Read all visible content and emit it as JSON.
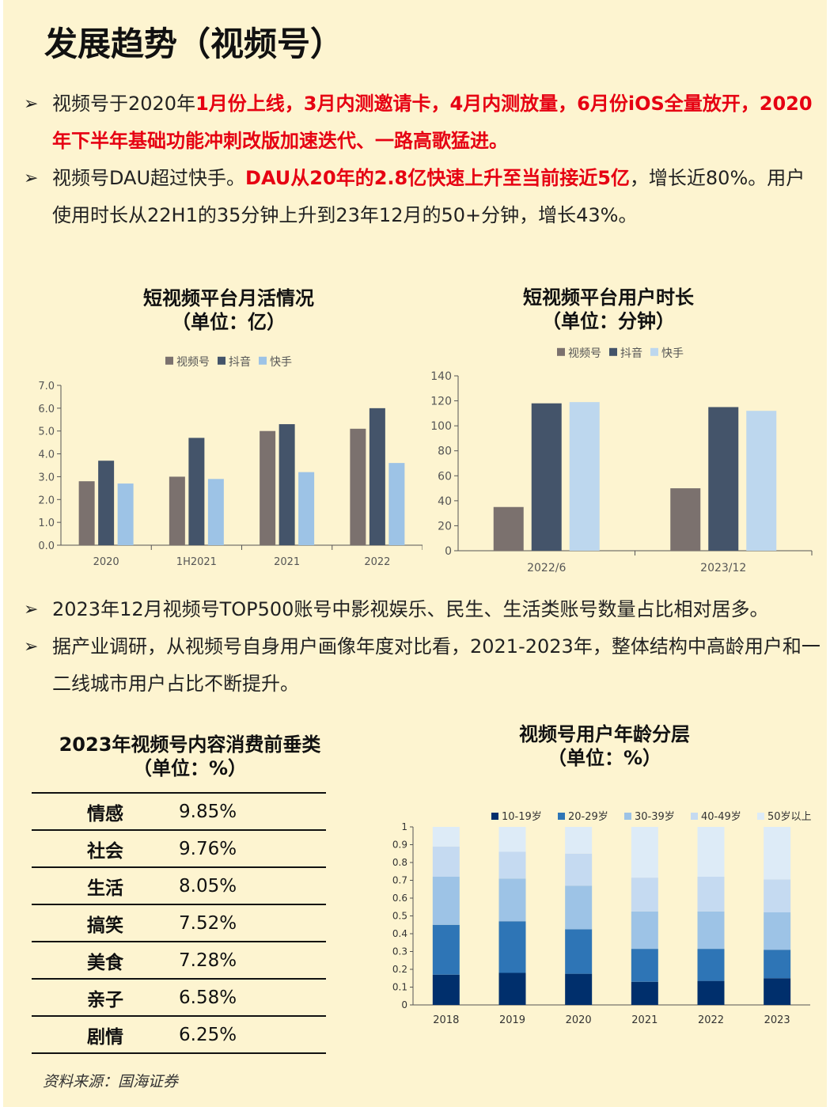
{
  "title": "发展趋势（视频号）",
  "bullets_top": [
    [
      {
        "t": "视频号于2020年",
        "red": false
      },
      {
        "t": "1月份上线，3月内测邀请卡，4月内测放量，6月份iOS全量放开，2020年下半年基础功能冲刺改版加速迭代、一路高歌猛进。",
        "red": true
      }
    ],
    [
      {
        "t": "视频号DAU超过快手。",
        "red": false
      },
      {
        "t": "DAU从20年的2.8亿快速上升至当前接近5亿",
        "red": true
      },
      {
        "t": "，增长近80%。用户使用时长从22H1的35分钟上升到23年12月的50+分钟，增长43%。",
        "red": false
      }
    ]
  ],
  "bullets_mid": [
    [
      {
        "t": "2023年12月视频号TOP500账号中影视娱乐、民生、生活类账号数量占比相对居多。",
        "red": false
      }
    ],
    [
      {
        "t": "据产业调研，从视频号自身用户画像年度对比看，2021-2023年，整体结构中高龄用户和一二线城市用户占比不断提升。",
        "red": false
      }
    ]
  ],
  "chart1_title_line1": "短视频平台月活情况",
  "chart1_title_line2": "（单位：亿）",
  "chart2_title_line1": "短视频平台用户时长",
  "chart2_title_line2": "（单位：分钟）",
  "table_title_line1": "2023年视频号内容消费前垂类",
  "table_title_line2": "（单位：%）",
  "chart3_title_line1": "视频号用户年龄分层",
  "chart3_title_line2": "（单位：%）",
  "source": "资料来源：国海证券",
  "table_rows": [
    {
      "name": "情感",
      "value": "9.85%"
    },
    {
      "name": "社会",
      "value": "9.76%"
    },
    {
      "name": "生活",
      "value": "8.05%"
    },
    {
      "name": "搞笑",
      "value": "7.52%"
    },
    {
      "name": "美食",
      "value": "7.28%"
    },
    {
      "name": "亲子",
      "value": "6.58%"
    },
    {
      "name": "剧情",
      "value": "6.25%"
    }
  ],
  "chart_data": [
    {
      "type": "bar",
      "title": "短视频平台月活情况（单位：亿）",
      "categories": [
        "2020",
        "1H2021",
        "2021",
        "2022"
      ],
      "series": [
        {
          "name": "视频号",
          "values": [
            2.8,
            3.0,
            5.0,
            5.1
          ],
          "color": "#7b716e"
        },
        {
          "name": "抖音",
          "values": [
            3.7,
            4.7,
            5.3,
            6.0
          ],
          "color": "#44546a"
        },
        {
          "name": "快手",
          "values": [
            2.7,
            2.9,
            3.2,
            3.6
          ],
          "color": "#9dc3e6"
        }
      ],
      "ylim": [
        0,
        7
      ],
      "yticks": [
        "0.0",
        "1.0",
        "2.0",
        "3.0",
        "4.0",
        "5.0",
        "6.0",
        "7.0"
      ],
      "legend": "top"
    },
    {
      "type": "bar",
      "title": "短视频平台用户时长（单位：分钟）",
      "categories": [
        "2022/6",
        "2023/12"
      ],
      "series": [
        {
          "name": "视频号",
          "values": [
            35,
            50
          ],
          "color": "#7b716e"
        },
        {
          "name": "抖音",
          "values": [
            118,
            115
          ],
          "color": "#44546a"
        },
        {
          "name": "快手",
          "values": [
            119,
            112
          ],
          "color": "#bdd7ee"
        }
      ],
      "ylim": [
        0,
        140
      ],
      "yticks": [
        "0",
        "20",
        "40",
        "60",
        "80",
        "100",
        "120",
        "140"
      ],
      "legend": "top"
    },
    {
      "type": "bar",
      "stacked": true,
      "title": "视频号用户年龄分层（单位：%）",
      "categories": [
        "2018",
        "2019",
        "2020",
        "2021",
        "2022",
        "2023"
      ],
      "series": [
        {
          "name": "10-19岁",
          "values": [
            0.17,
            0.18,
            0.175,
            0.13,
            0.135,
            0.15
          ],
          "color": "#002f6c"
        },
        {
          "name": "20-29岁",
          "values": [
            0.28,
            0.29,
            0.25,
            0.185,
            0.18,
            0.16
          ],
          "color": "#2e75b6"
        },
        {
          "name": "30-39岁",
          "values": [
            0.27,
            0.24,
            0.245,
            0.21,
            0.21,
            0.21
          ],
          "color": "#9dc3e6"
        },
        {
          "name": "40-49岁",
          "values": [
            0.17,
            0.15,
            0.18,
            0.19,
            0.195,
            0.185
          ],
          "color": "#c5daf1"
        },
        {
          "name": "50岁以上",
          "values": [
            0.11,
            0.14,
            0.15,
            0.285,
            0.28,
            0.295
          ],
          "color": "#ddebf7"
        }
      ],
      "ylim": [
        0,
        1
      ],
      "yticks": [
        "0",
        "0.1",
        "0.2",
        "0.3",
        "0.4",
        "0.5",
        "0.6",
        "0.7",
        "0.8",
        "0.9",
        "1"
      ],
      "legend": "top"
    }
  ]
}
